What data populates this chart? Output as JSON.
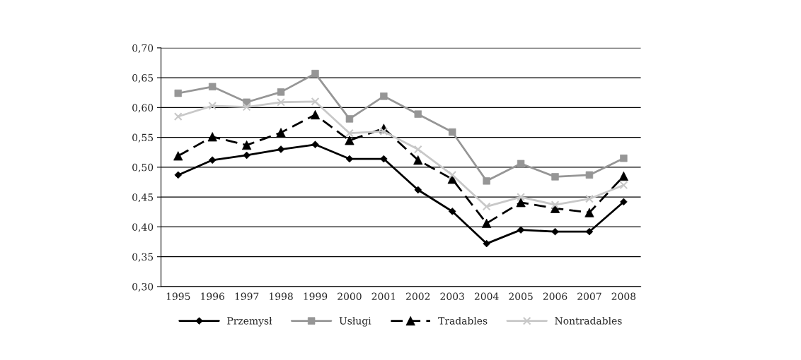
{
  "chart_data": {
    "type": "line",
    "categories": [
      "1995",
      "1996",
      "1997",
      "1998",
      "1999",
      "2000",
      "2001",
      "2002",
      "2003",
      "2004",
      "2005",
      "2006",
      "2007",
      "2008"
    ],
    "series": [
      {
        "name": "Przemysł",
        "color": "#000000",
        "marker": "diamond",
        "line_style": "solid",
        "values": [
          0.487,
          0.512,
          0.52,
          0.53,
          0.538,
          0.514,
          0.514,
          0.462,
          0.426,
          0.372,
          0.395,
          0.392,
          0.392,
          0.442
        ]
      },
      {
        "name": "Usługi",
        "color": "#969696",
        "marker": "square",
        "line_style": "solid",
        "values": [
          0.624,
          0.635,
          0.609,
          0.626,
          0.657,
          0.581,
          0.619,
          0.589,
          0.559,
          0.477,
          0.506,
          0.484,
          0.487,
          0.515
        ]
      },
      {
        "name": "Tradables",
        "color": "#000000",
        "marker": "triangle",
        "line_style": "dashed",
        "values": [
          0.519,
          0.551,
          0.537,
          0.558,
          0.588,
          0.545,
          0.565,
          0.512,
          0.48,
          0.406,
          0.441,
          0.431,
          0.424,
          0.485
        ]
      },
      {
        "name": "Nontradables",
        "color": "#c8c8c8",
        "marker": "cross",
        "line_style": "solid",
        "values": [
          0.585,
          0.603,
          0.601,
          0.609,
          0.61,
          0.557,
          0.56,
          0.53,
          0.487,
          0.434,
          0.45,
          0.437,
          0.447,
          0.47
        ]
      }
    ],
    "ylim": [
      0.3,
      0.7
    ],
    "yticks": [
      {
        "value": 0.3,
        "label": "0,30"
      },
      {
        "value": 0.35,
        "label": "0,35"
      },
      {
        "value": 0.4,
        "label": "0,40"
      },
      {
        "value": 0.45,
        "label": "0,45"
      },
      {
        "value": 0.5,
        "label": "0,50"
      },
      {
        "value": 0.55,
        "label": "0,55"
      },
      {
        "value": 0.6,
        "label": "0,60"
      },
      {
        "value": 0.65,
        "label": "0,65"
      },
      {
        "value": 0.7,
        "label": "0,70"
      }
    ],
    "grid": "y",
    "legend": "bottom"
  }
}
